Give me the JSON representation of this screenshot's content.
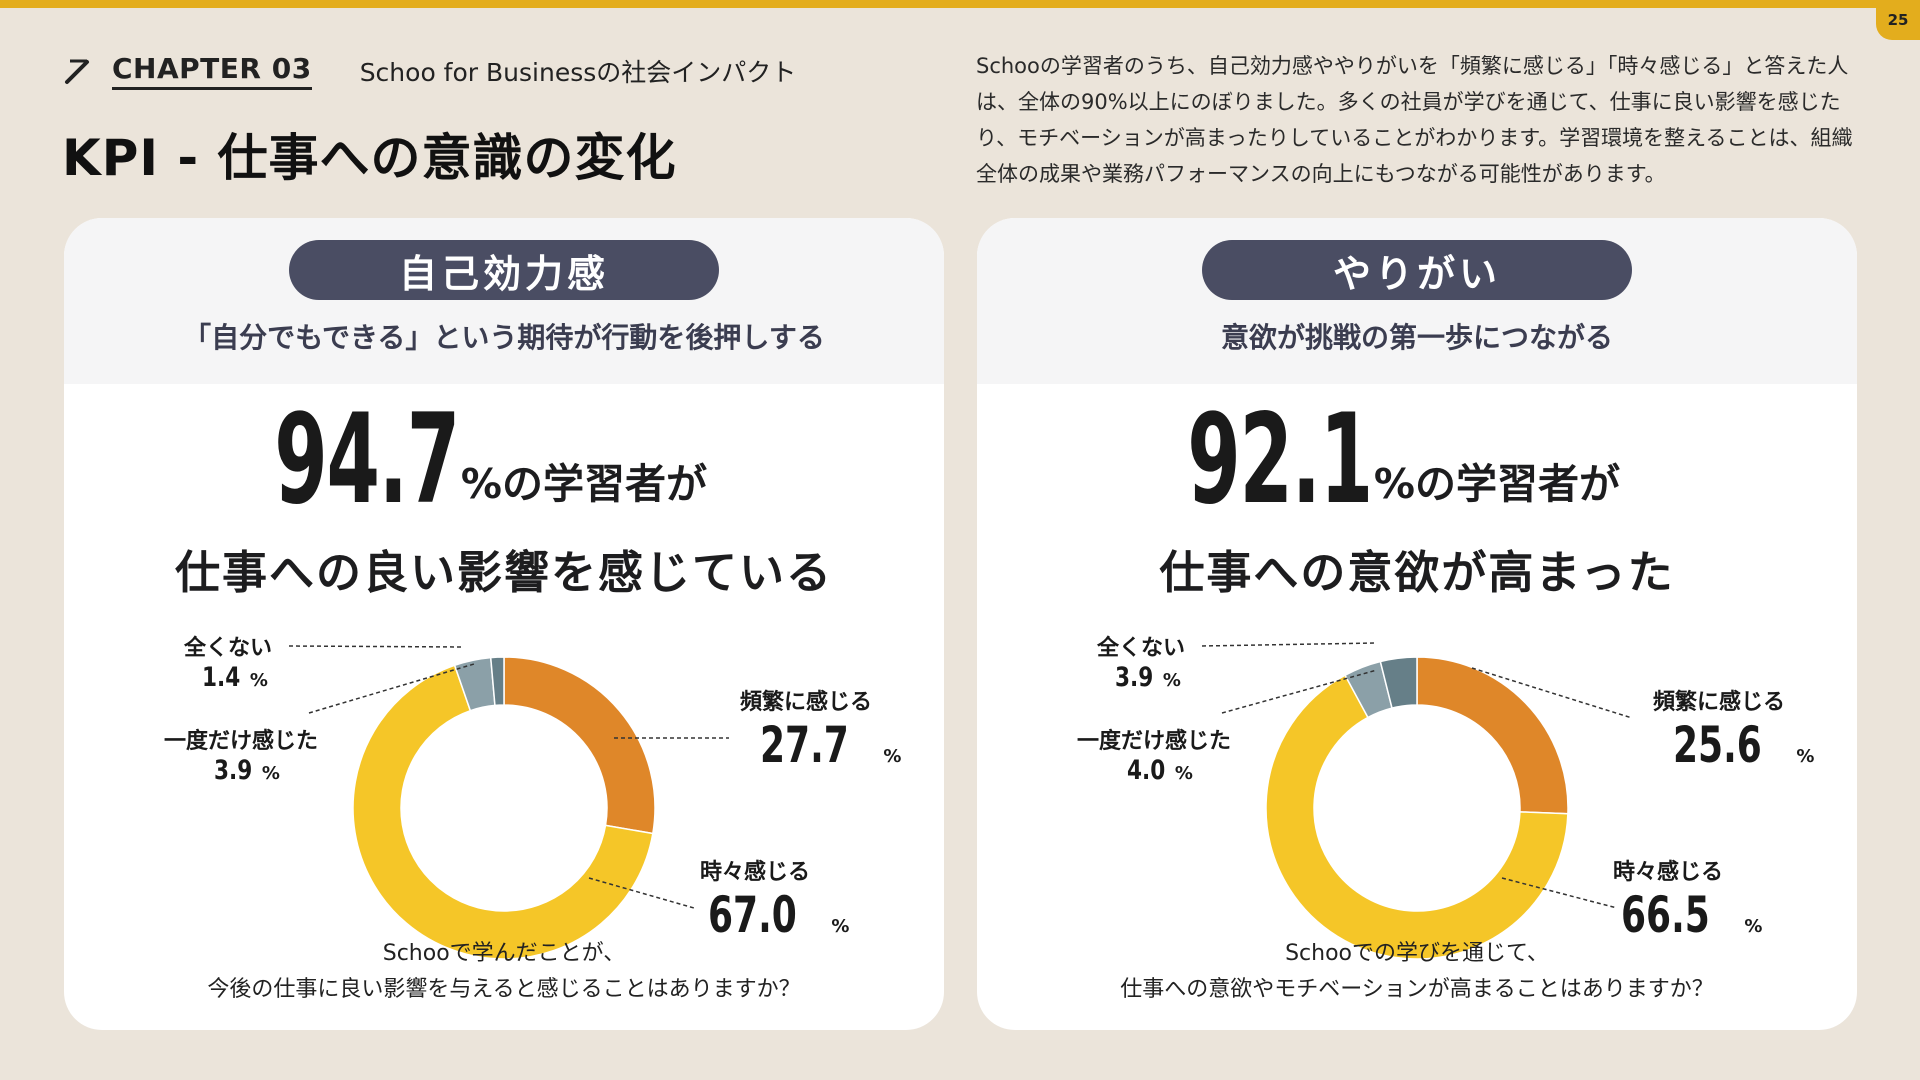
{
  "page_number": "25",
  "chapter": {
    "label": "CHAPTER 03",
    "subtitle": "Schoo for Businessの社会インパクト"
  },
  "title": "KPI - 仕事への意識の変化",
  "intro": "Schooの学習者のうち、自己効力感ややりがいを「頻繁に感じる」「時々感じる」と答えた人は、全体の90%以上にのぼりました。多くの社員が学びを通じて、仕事に良い影響を感じたり、モチベーションが高まったりしていることがわかります。学習環境を整えることは、組織全体の成果や業務パフォーマンスの向上にもつながる可能性があります。",
  "colors": {
    "frequent": "#df8729",
    "sometimes": "#f5c628",
    "once": "#8ba0a8",
    "never": "#667f88",
    "pill": "#4a4d63",
    "accent": "#e3ad1d"
  },
  "cards": [
    {
      "pill": "自己効力感",
      "tagline": "「自分でもできる」という期待が行動を後押しする",
      "big_number": "94.7",
      "big_suffix": "%の学習者が",
      "headline": "仕事への良い影響を感じている",
      "question_line1": "Schooで学んだことが、",
      "question_line2": "今後の仕事に良い影響を与えると感じることはありますか？",
      "labels": {
        "never": {
          "text": "全くない",
          "value": "1.4",
          "unit": "%"
        },
        "once": {
          "text": "一度だけ感じた",
          "value": "3.9",
          "unit": "%"
        },
        "frequent": {
          "text": "頻繁に感じる",
          "value": "27.7",
          "unit": "%"
        },
        "sometimes": {
          "text": "時々感じる",
          "value": "67.0",
          "unit": "%"
        }
      }
    },
    {
      "pill": "やりがい",
      "tagline": "意欲が挑戦の第一歩につながる",
      "big_number": "92.1",
      "big_suffix": "%の学習者が",
      "headline": "仕事への意欲が高まった",
      "question_line1": "Schooでの学びを通じて、",
      "question_line2": "仕事への意欲やモチベーションが高まることはありますか？",
      "labels": {
        "never": {
          "text": "全くない",
          "value": "3.9",
          "unit": "%"
        },
        "once": {
          "text": "一度だけ感じた",
          "value": "4.0",
          "unit": "%"
        },
        "frequent": {
          "text": "頻繁に感じる",
          "value": "25.6",
          "unit": "%"
        },
        "sometimes": {
          "text": "時々感じる",
          "value": "66.5",
          "unit": "%"
        }
      }
    }
  ],
  "chart_data": [
    {
      "type": "pie",
      "title": "自己効力感",
      "categories": [
        "頻繁に感じる",
        "時々感じる",
        "一度だけ感じた",
        "全くない"
      ],
      "values": [
        27.7,
        67.0,
        3.9,
        1.4
      ],
      "colors": [
        "#df8729",
        "#f5c628",
        "#8ba0a8",
        "#667f88"
      ]
    },
    {
      "type": "pie",
      "title": "やりがい",
      "categories": [
        "頻繁に感じる",
        "時々感じる",
        "一度だけ感じた",
        "全くない"
      ],
      "values": [
        25.6,
        66.5,
        4.0,
        3.9
      ],
      "colors": [
        "#df8729",
        "#f5c628",
        "#8ba0a8",
        "#667f88"
      ]
    }
  ]
}
